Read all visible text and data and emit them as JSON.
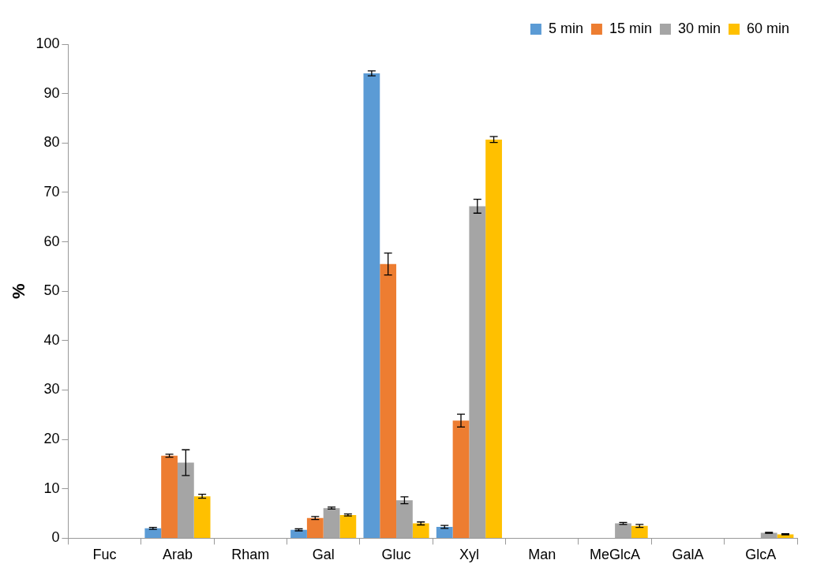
{
  "chart_data": {
    "type": "bar",
    "ylabel": "%",
    "categories": [
      "Fuc",
      "Arab",
      "Rham",
      "Gal",
      "Gluc",
      "Xyl",
      "Man",
      "MeGlcA",
      "GalA",
      "GlcA"
    ],
    "series": [
      {
        "name": "5 min",
        "color": "#5b9bd5",
        "values": [
          0,
          2.0,
          0,
          1.7,
          94.1,
          2.3,
          0,
          0,
          0,
          0
        ],
        "errors": [
          null,
          0.2,
          null,
          0.2,
          0.5,
          0.3,
          null,
          null,
          null,
          null
        ]
      },
      {
        "name": "15 min",
        "color": "#ed7d31",
        "values": [
          0,
          16.7,
          0,
          4.1,
          55.5,
          23.8,
          0,
          0,
          0,
          0
        ],
        "errors": [
          null,
          0.3,
          null,
          0.3,
          2.2,
          1.3,
          null,
          null,
          null,
          null
        ]
      },
      {
        "name": "30 min",
        "color": "#a5a5a5",
        "values": [
          0,
          15.3,
          0,
          6.1,
          7.7,
          67.2,
          0,
          3.0,
          0,
          1.1
        ],
        "errors": [
          null,
          2.6,
          null,
          0.2,
          0.7,
          1.4,
          null,
          0.2,
          null,
          0.1
        ]
      },
      {
        "name": "60 min",
        "color": "#ffc000",
        "values": [
          0,
          8.5,
          0,
          4.7,
          3.0,
          80.7,
          0,
          2.5,
          0,
          0.8
        ],
        "errors": [
          null,
          0.4,
          null,
          0.2,
          0.3,
          0.6,
          null,
          0.3,
          null,
          0.1
        ]
      }
    ],
    "ylim": [
      0,
      100
    ],
    "yticks": [
      0,
      10,
      20,
      30,
      40,
      50,
      60,
      70,
      80,
      90,
      100
    ],
    "grid": false,
    "legend": "top right"
  }
}
